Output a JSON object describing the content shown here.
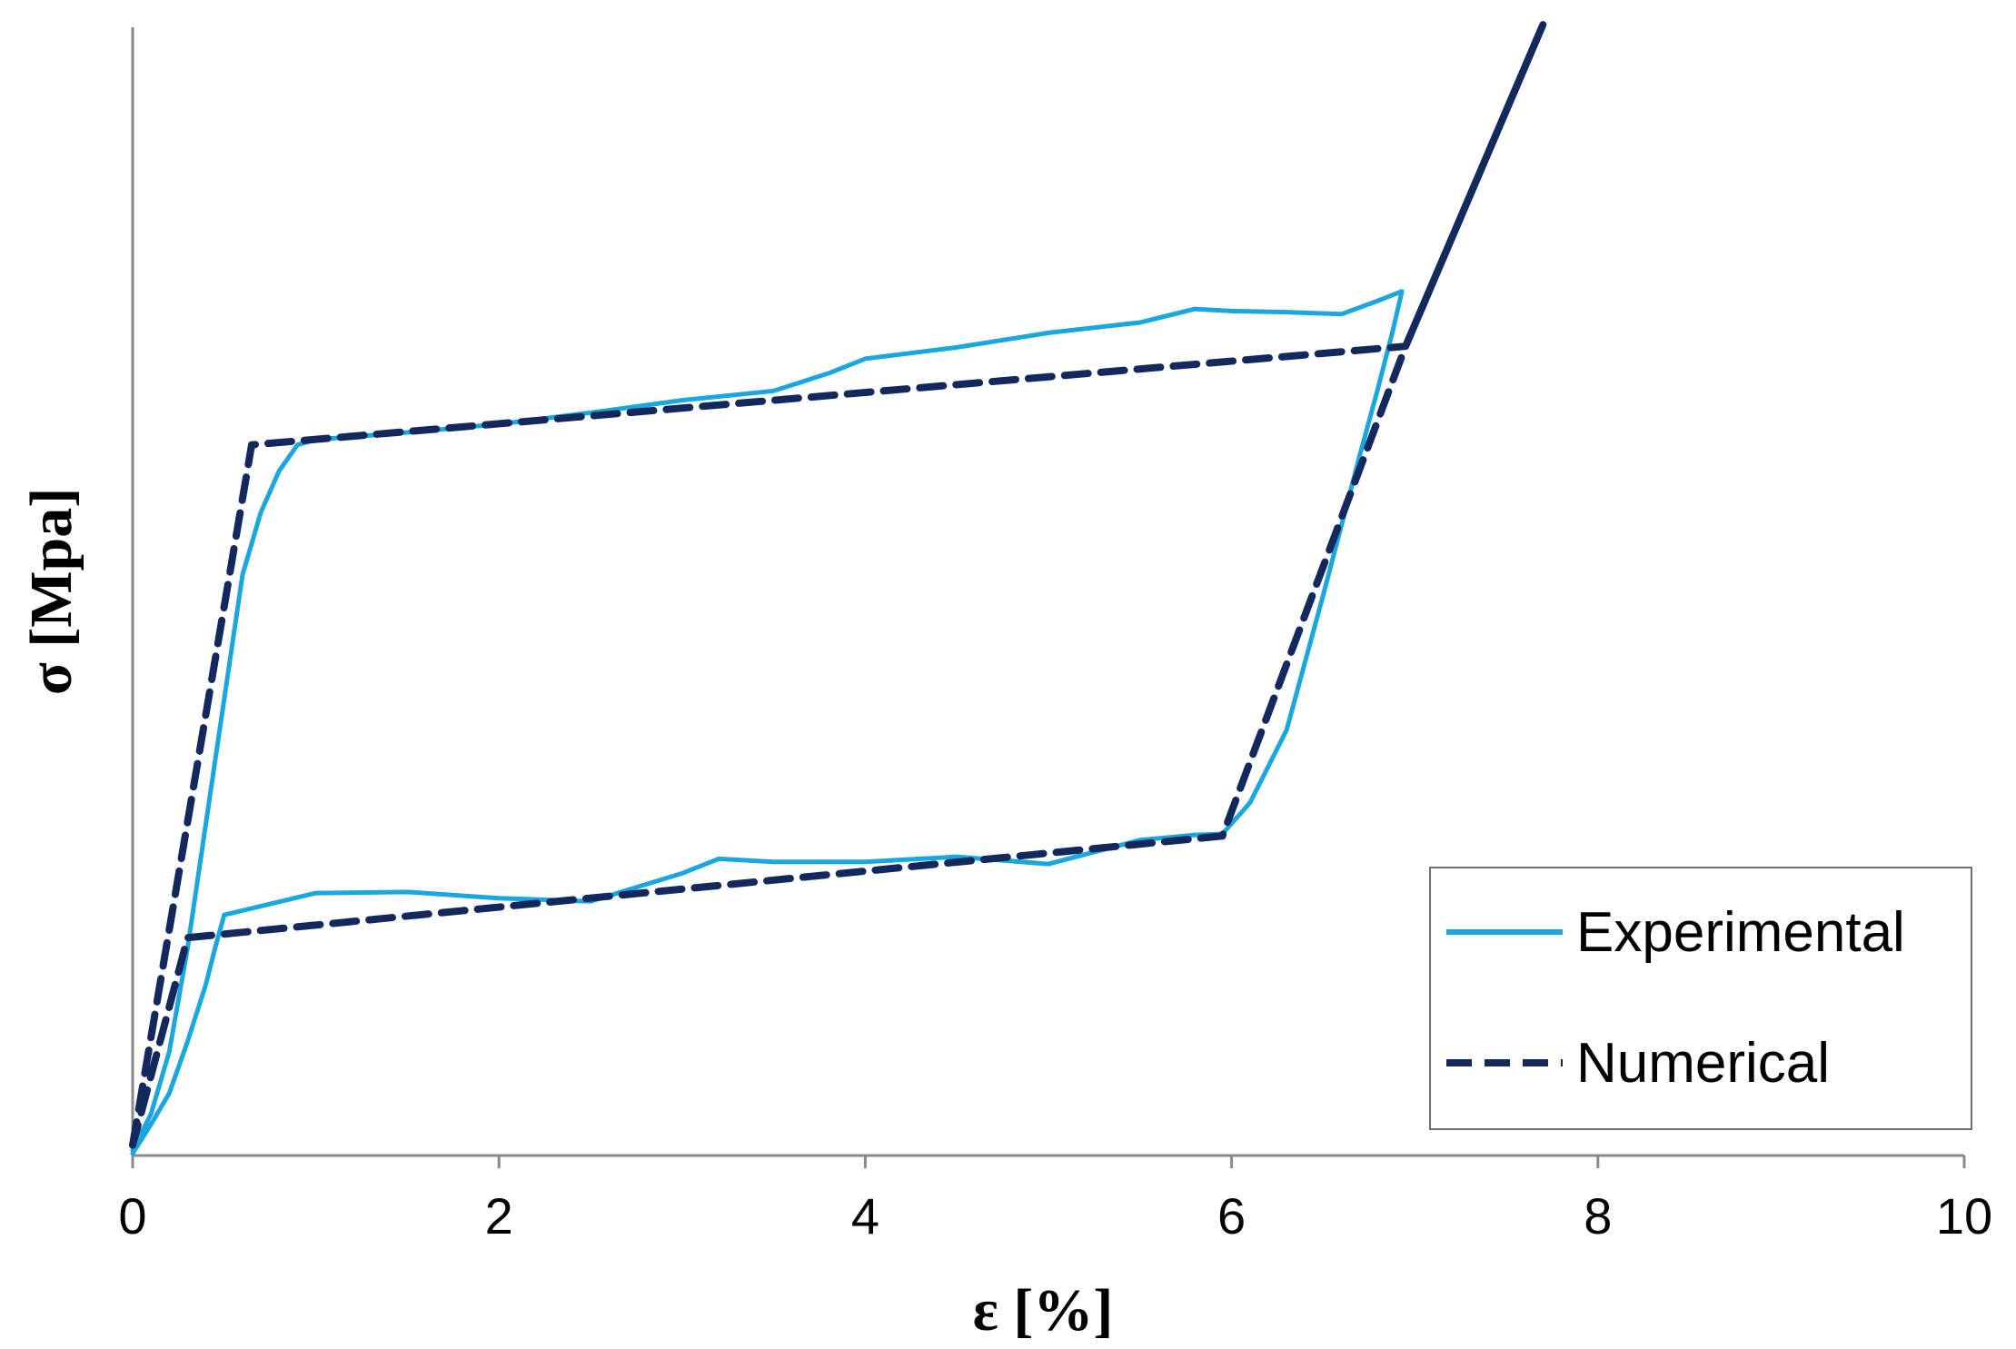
{
  "chart_data": {
    "type": "line",
    "xlabel": "ε [%]",
    "ylabel": "σ [Mpa]",
    "xlim": [
      0,
      10
    ],
    "ylim": [
      0,
      100
    ],
    "x_ticks": [
      "0",
      "2",
      "4",
      "6",
      "8",
      "10"
    ],
    "y_ticks_shown": false,
    "grid": false,
    "legend_position": "bottom-right",
    "series": [
      {
        "name": "Experimental",
        "color": "#1aa7e0",
        "style": "solid",
        "points": [
          [
            0,
            0.5
          ],
          [
            0.1,
            4
          ],
          [
            0.2,
            10
          ],
          [
            0.3,
            20
          ],
          [
            0.4,
            32
          ],
          [
            0.5,
            44
          ],
          [
            0.6,
            56
          ],
          [
            0.7,
            62
          ],
          [
            0.8,
            66
          ],
          [
            0.9,
            68.5
          ],
          [
            1.0,
            69
          ],
          [
            1.5,
            69.7
          ],
          [
            2.0,
            70.5
          ],
          [
            2.5,
            71.6
          ],
          [
            3.0,
            72.8
          ],
          [
            3.5,
            73.7
          ],
          [
            3.8,
            75.4
          ],
          [
            4.0,
            76.8
          ],
          [
            4.5,
            77.9
          ],
          [
            5.0,
            79.3
          ],
          [
            5.5,
            80.3
          ],
          [
            5.8,
            81.6
          ],
          [
            6.0,
            81.4
          ],
          [
            6.3,
            81.3
          ],
          [
            6.6,
            81.1
          ],
          [
            6.8,
            82.4
          ],
          [
            6.93,
            83.3
          ],
          [
            6.88,
            79.5
          ],
          [
            6.8,
            74
          ],
          [
            6.7,
            67.5
          ],
          [
            6.5,
            54
          ],
          [
            6.3,
            41
          ],
          [
            6.1,
            34
          ],
          [
            5.95,
            31
          ],
          [
            5.8,
            30.9
          ],
          [
            5.5,
            30.4
          ],
          [
            5.0,
            28.1
          ],
          [
            4.5,
            28.8
          ],
          [
            4.0,
            28.3
          ],
          [
            3.5,
            28.3
          ],
          [
            3.2,
            28.6
          ],
          [
            3.0,
            27.2
          ],
          [
            2.5,
            24.5
          ],
          [
            2.0,
            24.8
          ],
          [
            1.5,
            25.4
          ],
          [
            1.0,
            25.3
          ],
          [
            0.5,
            23.2
          ],
          [
            0.45,
            20
          ],
          [
            0.4,
            16.5
          ],
          [
            0.3,
            11
          ],
          [
            0.2,
            6
          ],
          [
            0.1,
            3
          ],
          [
            0.0,
            0.2
          ]
        ]
      },
      {
        "name": "Numerical",
        "color": "#13295e",
        "style": "dashed",
        "points": [
          [
            0,
            1.0
          ],
          [
            0.65,
            68.5
          ],
          [
            6.95,
            78.0
          ],
          [
            7.7,
            109
          ],
          [
            6.95,
            78.0
          ],
          [
            5.95,
            30.8
          ],
          [
            0.3,
            21.0
          ],
          [
            0,
            1.0
          ]
        ]
      }
    ]
  }
}
